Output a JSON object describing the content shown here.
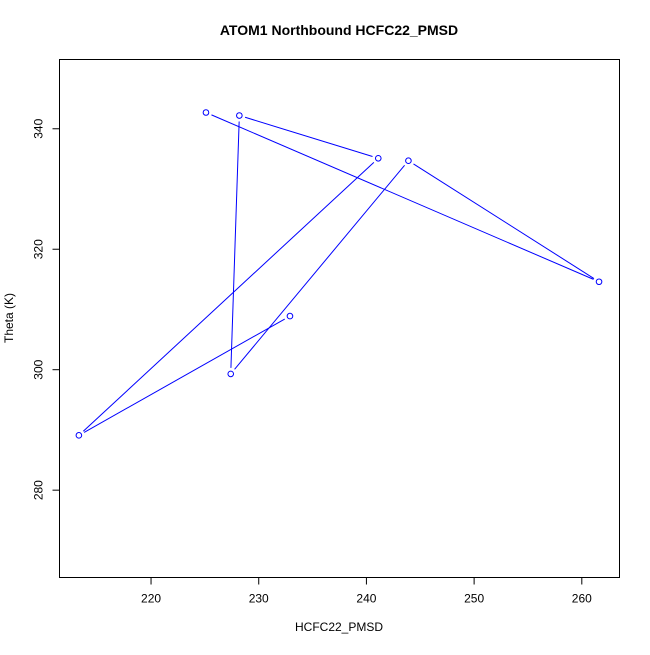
{
  "chart_data": {
    "type": "line",
    "title": "ATOM1 Northbound HCFC22_PMSD",
    "xlabel": "HCFC22_PMSD",
    "ylabel": "Theta (K)",
    "xlim": [
      211.5,
      263.5
    ],
    "ylim": [
      265.5,
      351.5
    ],
    "x_ticks": [
      220,
      230,
      240,
      250,
      260
    ],
    "y_ticks": [
      280,
      300,
      320,
      340
    ],
    "grid": false,
    "line_color": "#0000ff",
    "marker": "open-circle",
    "series": [
      {
        "x": [
          232.9,
          213.3,
          241.1,
          228.2,
          227.4,
          243.9,
          261.6,
          225.1
        ],
        "y": [
          308.9,
          289.1,
          335.1,
          342.2,
          299.3,
          334.7,
          314.6,
          342.7
        ]
      }
    ]
  }
}
